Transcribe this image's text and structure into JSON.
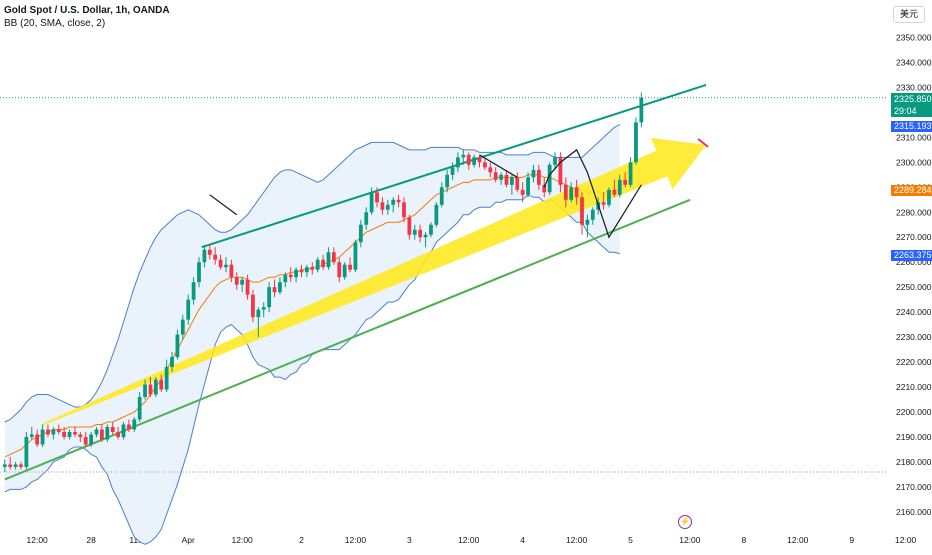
{
  "header": {
    "title": "Gold Spot / U.S. Dollar, 1h, OANDA",
    "indicator": "BB (20, SMA, close, 2)"
  },
  "currency_button": "美元",
  "price_tags": {
    "last_price": "2325.850",
    "countdown": "29:04",
    "bb_upper": "2315.193",
    "bb_basis": "2289.284",
    "bb_lower": "2263.375"
  },
  "colors": {
    "up": "#089981",
    "down": "#f23645",
    "bb_band": "#4a7fd1",
    "bb_basis": "#f57c00",
    "bb_fill": "#eaf3fb",
    "upper_channel": "#089981",
    "lower_channel": "#4caf50",
    "arrow": "#ffe81e",
    "pen": "#131722"
  },
  "chart_data": {
    "type": "candlestick",
    "title": "Gold Spot / U.S. Dollar, 1h, OANDA",
    "ylim": [
      2156,
      2356
    ],
    "y_ticks": [
      2160,
      2170,
      2180,
      2190,
      2200,
      2210,
      2220,
      2230,
      2240,
      2250,
      2260,
      2270,
      2280,
      2290,
      2300,
      2310,
      2320,
      2330,
      2340,
      2350
    ],
    "x_ticks": [
      "12:00",
      "28",
      "11:00",
      "Apr",
      "12:00",
      "2",
      "12:00",
      "3",
      "12:00",
      "4",
      "12:00",
      "5",
      "12:00",
      "8",
      "12:00",
      "9",
      "12:00"
    ],
    "x_index_range": [
      0,
      131
    ],
    "x_tick_positions": [
      6,
      16,
      25,
      34,
      44,
      55,
      65,
      75,
      86,
      96,
      106,
      116,
      127,
      137,
      147,
      157,
      167
    ],
    "candles": [
      {
        "o": 2178,
        "h": 2181,
        "l": 2176,
        "c": 2179
      },
      {
        "o": 2179,
        "h": 2182,
        "l": 2177,
        "c": 2178
      },
      {
        "o": 2178,
        "h": 2180,
        "l": 2177,
        "c": 2179
      },
      {
        "o": 2179,
        "h": 2180,
        "l": 2177,
        "c": 2178
      },
      {
        "o": 2178,
        "h": 2192,
        "l": 2177,
        "c": 2190
      },
      {
        "o": 2190,
        "h": 2194,
        "l": 2189,
        "c": 2191
      },
      {
        "o": 2191,
        "h": 2193,
        "l": 2186,
        "c": 2187
      },
      {
        "o": 2187,
        "h": 2195,
        "l": 2186,
        "c": 2193
      },
      {
        "o": 2193,
        "h": 2195,
        "l": 2190,
        "c": 2191
      },
      {
        "o": 2191,
        "h": 2194,
        "l": 2189,
        "c": 2193
      },
      {
        "o": 2193,
        "h": 2195,
        "l": 2191,
        "c": 2192
      },
      {
        "o": 2192,
        "h": 2194,
        "l": 2189,
        "c": 2190
      },
      {
        "o": 2190,
        "h": 2193,
        "l": 2189,
        "c": 2192
      },
      {
        "o": 2192,
        "h": 2194,
        "l": 2190,
        "c": 2191
      },
      {
        "o": 2191,
        "h": 2192,
        "l": 2188,
        "c": 2190
      },
      {
        "o": 2190,
        "h": 2192,
        "l": 2186,
        "c": 2187
      },
      {
        "o": 2187,
        "h": 2192,
        "l": 2186,
        "c": 2191
      },
      {
        "o": 2191,
        "h": 2194,
        "l": 2190,
        "c": 2193
      },
      {
        "o": 2193,
        "h": 2195,
        "l": 2188,
        "c": 2189
      },
      {
        "o": 2189,
        "h": 2195,
        "l": 2188,
        "c": 2194
      },
      {
        "o": 2194,
        "h": 2196,
        "l": 2191,
        "c": 2192
      },
      {
        "o": 2192,
        "h": 2194,
        "l": 2189,
        "c": 2190
      },
      {
        "o": 2190,
        "h": 2196,
        "l": 2189,
        "c": 2195
      },
      {
        "o": 2195,
        "h": 2197,
        "l": 2192,
        "c": 2193
      },
      {
        "o": 2193,
        "h": 2198,
        "l": 2192,
        "c": 2197
      },
      {
        "o": 2197,
        "h": 2208,
        "l": 2196,
        "c": 2206
      },
      {
        "o": 2206,
        "h": 2213,
        "l": 2205,
        "c": 2211
      },
      {
        "o": 2211,
        "h": 2214,
        "l": 2206,
        "c": 2207
      },
      {
        "o": 2207,
        "h": 2214,
        "l": 2206,
        "c": 2213
      },
      {
        "o": 2213,
        "h": 2215,
        "l": 2208,
        "c": 2209
      },
      {
        "o": 2209,
        "h": 2221,
        "l": 2208,
        "c": 2218
      },
      {
        "o": 2218,
        "h": 2224,
        "l": 2216,
        "c": 2222
      },
      {
        "o": 2222,
        "h": 2233,
        "l": 2221,
        "c": 2231
      },
      {
        "o": 2231,
        "h": 2239,
        "l": 2229,
        "c": 2237
      },
      {
        "o": 2237,
        "h": 2247,
        "l": 2235,
        "c": 2245
      },
      {
        "o": 2245,
        "h": 2254,
        "l": 2243,
        "c": 2252
      },
      {
        "o": 2252,
        "h": 2262,
        "l": 2250,
        "c": 2260
      },
      {
        "o": 2260,
        "h": 2267,
        "l": 2258,
        "c": 2265
      },
      {
        "o": 2265,
        "h": 2267,
        "l": 2261,
        "c": 2263
      },
      {
        "o": 2263,
        "h": 2266,
        "l": 2259,
        "c": 2261
      },
      {
        "o": 2261,
        "h": 2263,
        "l": 2257,
        "c": 2258
      },
      {
        "o": 2258,
        "h": 2262,
        "l": 2256,
        "c": 2259
      },
      {
        "o": 2259,
        "h": 2261,
        "l": 2252,
        "c": 2254
      },
      {
        "o": 2254,
        "h": 2256,
        "l": 2249,
        "c": 2251
      },
      {
        "o": 2251,
        "h": 2254,
        "l": 2248,
        "c": 2253
      },
      {
        "o": 2253,
        "h": 2255,
        "l": 2245,
        "c": 2247
      },
      {
        "o": 2247,
        "h": 2249,
        "l": 2236,
        "c": 2238
      },
      {
        "o": 2238,
        "h": 2242,
        "l": 2230,
        "c": 2241
      },
      {
        "o": 2241,
        "h": 2244,
        "l": 2238,
        "c": 2242
      },
      {
        "o": 2242,
        "h": 2252,
        "l": 2240,
        "c": 2250
      },
      {
        "o": 2250,
        "h": 2253,
        "l": 2246,
        "c": 2248
      },
      {
        "o": 2248,
        "h": 2254,
        "l": 2247,
        "c": 2252
      },
      {
        "o": 2252,
        "h": 2256,
        "l": 2250,
        "c": 2255
      },
      {
        "o": 2255,
        "h": 2258,
        "l": 2252,
        "c": 2254
      },
      {
        "o": 2254,
        "h": 2258,
        "l": 2252,
        "c": 2257
      },
      {
        "o": 2257,
        "h": 2259,
        "l": 2254,
        "c": 2256
      },
      {
        "o": 2256,
        "h": 2259,
        "l": 2254,
        "c": 2258
      },
      {
        "o": 2258,
        "h": 2260,
        "l": 2255,
        "c": 2257
      },
      {
        "o": 2257,
        "h": 2262,
        "l": 2256,
        "c": 2261
      },
      {
        "o": 2261,
        "h": 2263,
        "l": 2257,
        "c": 2258
      },
      {
        "o": 2258,
        "h": 2266,
        "l": 2257,
        "c": 2264
      },
      {
        "o": 2264,
        "h": 2266,
        "l": 2259,
        "c": 2260
      },
      {
        "o": 2260,
        "h": 2262,
        "l": 2252,
        "c": 2254
      },
      {
        "o": 2254,
        "h": 2260,
        "l": 2253,
        "c": 2259
      },
      {
        "o": 2259,
        "h": 2262,
        "l": 2256,
        "c": 2257
      },
      {
        "o": 2257,
        "h": 2269,
        "l": 2256,
        "c": 2268
      },
      {
        "o": 2268,
        "h": 2277,
        "l": 2266,
        "c": 2275
      },
      {
        "o": 2275,
        "h": 2282,
        "l": 2273,
        "c": 2280
      },
      {
        "o": 2280,
        "h": 2290,
        "l": 2279,
        "c": 2288
      },
      {
        "o": 2288,
        "h": 2290,
        "l": 2282,
        "c": 2284
      },
      {
        "o": 2284,
        "h": 2286,
        "l": 2279,
        "c": 2281
      },
      {
        "o": 2281,
        "h": 2285,
        "l": 2279,
        "c": 2283
      },
      {
        "o": 2283,
        "h": 2286,
        "l": 2280,
        "c": 2285
      },
      {
        "o": 2285,
        "h": 2287,
        "l": 2282,
        "c": 2284
      },
      {
        "o": 2284,
        "h": 2286,
        "l": 2276,
        "c": 2278
      },
      {
        "o": 2278,
        "h": 2279,
        "l": 2269,
        "c": 2271
      },
      {
        "o": 2271,
        "h": 2275,
        "l": 2269,
        "c": 2273
      },
      {
        "o": 2273,
        "h": 2275,
        "l": 2268,
        "c": 2270
      },
      {
        "o": 2270,
        "h": 2272,
        "l": 2266,
        "c": 2271
      },
      {
        "o": 2271,
        "h": 2276,
        "l": 2270,
        "c": 2275
      },
      {
        "o": 2275,
        "h": 2284,
        "l": 2274,
        "c": 2283
      },
      {
        "o": 2283,
        "h": 2292,
        "l": 2282,
        "c": 2290
      },
      {
        "o": 2290,
        "h": 2297,
        "l": 2288,
        "c": 2295
      },
      {
        "o": 2295,
        "h": 2300,
        "l": 2293,
        "c": 2298
      },
      {
        "o": 2298,
        "h": 2304,
        "l": 2296,
        "c": 2302
      },
      {
        "o": 2302,
        "h": 2305,
        "l": 2299,
        "c": 2303
      },
      {
        "o": 2303,
        "h": 2304,
        "l": 2297,
        "c": 2299
      },
      {
        "o": 2299,
        "h": 2303,
        "l": 2298,
        "c": 2302
      },
      {
        "o": 2302,
        "h": 2303,
        "l": 2298,
        "c": 2300
      },
      {
        "o": 2300,
        "h": 2302,
        "l": 2297,
        "c": 2298
      },
      {
        "o": 2298,
        "h": 2300,
        "l": 2294,
        "c": 2296
      },
      {
        "o": 2296,
        "h": 2298,
        "l": 2292,
        "c": 2293
      },
      {
        "o": 2293,
        "h": 2296,
        "l": 2291,
        "c": 2295
      },
      {
        "o": 2295,
        "h": 2297,
        "l": 2290,
        "c": 2291
      },
      {
        "o": 2291,
        "h": 2295,
        "l": 2287,
        "c": 2294
      },
      {
        "o": 2294,
        "h": 2296,
        "l": 2288,
        "c": 2289
      },
      {
        "o": 2289,
        "h": 2292,
        "l": 2284,
        "c": 2287
      },
      {
        "o": 2287,
        "h": 2296,
        "l": 2286,
        "c": 2294
      },
      {
        "o": 2294,
        "h": 2299,
        "l": 2292,
        "c": 2297
      },
      {
        "o": 2297,
        "h": 2299,
        "l": 2289,
        "c": 2291
      },
      {
        "o": 2291,
        "h": 2294,
        "l": 2286,
        "c": 2288
      },
      {
        "o": 2288,
        "h": 2300,
        "l": 2287,
        "c": 2299
      },
      {
        "o": 2299,
        "h": 2304,
        "l": 2297,
        "c": 2302
      },
      {
        "o": 2302,
        "h": 2304,
        "l": 2288,
        "c": 2291
      },
      {
        "o": 2291,
        "h": 2294,
        "l": 2282,
        "c": 2285
      },
      {
        "o": 2285,
        "h": 2292,
        "l": 2284,
        "c": 2290
      },
      {
        "o": 2290,
        "h": 2293,
        "l": 2283,
        "c": 2286
      },
      {
        "o": 2286,
        "h": 2288,
        "l": 2271,
        "c": 2275
      },
      {
        "o": 2275,
        "h": 2279,
        "l": 2270,
        "c": 2277
      },
      {
        "o": 2277,
        "h": 2282,
        "l": 2275,
        "c": 2281
      },
      {
        "o": 2281,
        "h": 2286,
        "l": 2279,
        "c": 2284
      },
      {
        "o": 2284,
        "h": 2288,
        "l": 2281,
        "c": 2283
      },
      {
        "o": 2283,
        "h": 2290,
        "l": 2282,
        "c": 2289
      },
      {
        "o": 2289,
        "h": 2293,
        "l": 2286,
        "c": 2287
      },
      {
        "o": 2287,
        "h": 2295,
        "l": 2286,
        "c": 2293
      },
      {
        "o": 2293,
        "h": 2296,
        "l": 2290,
        "c": 2291
      },
      {
        "o": 2291,
        "h": 2302,
        "l": 2290,
        "c": 2300
      },
      {
        "o": 2300,
        "h": 2318,
        "l": 2299,
        "c": 2316
      },
      {
        "o": 2316,
        "h": 2328,
        "l": 2314,
        "c": 2325.85
      }
    ],
    "bollinger": {
      "basis": [
        2182,
        2183,
        2184,
        2185,
        2187,
        2189,
        2190,
        2191,
        2192,
        2193,
        2193,
        2193,
        2194,
        2194,
        2194,
        2194,
        2194,
        2195,
        2195,
        2196,
        2196,
        2197,
        2198,
        2199,
        2200,
        2202,
        2204,
        2207,
        2210,
        2213,
        2217,
        2221,
        2225,
        2229,
        2233,
        2237,
        2241,
        2244,
        2247,
        2250,
        2252,
        2253,
        2254,
        2254,
        2254,
        2253,
        2252,
        2252,
        2253,
        2254,
        2254,
        2255,
        2255,
        2256,
        2256,
        2257,
        2257,
        2258,
        2258,
        2259,
        2260,
        2261,
        2262,
        2264,
        2266,
        2268,
        2270,
        2272,
        2273,
        2274,
        2275,
        2276,
        2276,
        2276,
        2277,
        2278,
        2279,
        2281,
        2283,
        2285,
        2287,
        2288,
        2289,
        2290,
        2291,
        2292,
        2292,
        2293,
        2293,
        2293,
        2293,
        2294,
        2294,
        2294,
        2294,
        2294,
        2294,
        2295,
        2295,
        2295,
        2294,
        2294,
        2293,
        2292,
        2291,
        2290,
        2289,
        2289,
        2288,
        2288,
        2288,
        2288,
        2288,
        2289,
        2289
      ],
      "upper": [
        2196,
        2197,
        2199,
        2201,
        2204,
        2206,
        2207,
        2207,
        2207,
        2206,
        2205,
        2204,
        2203,
        2202,
        2202,
        2203,
        2205,
        2208,
        2212,
        2217,
        2223,
        2229,
        2236,
        2243,
        2250,
        2256,
        2261,
        2266,
        2270,
        2273,
        2275,
        2277,
        2279,
        2280,
        2281,
        2280,
        2279,
        2277,
        2275,
        2273,
        2272,
        2272,
        2273,
        2275,
        2277,
        2279,
        2282,
        2285,
        2288,
        2291,
        2294,
        2296,
        2297,
        2297,
        2296,
        2295,
        2294,
        2293,
        2292,
        2293,
        2295,
        2297,
        2299,
        2301,
        2303,
        2305,
        2306,
        2307,
        2308,
        2308,
        2308,
        2308,
        2308,
        2307,
        2306,
        2305,
        2305,
        2305,
        2305,
        2306,
        2306,
        2306,
        2306,
        2306,
        2306,
        2305,
        2305,
        2305,
        2304,
        2304,
        2304,
        2304,
        2304,
        2303,
        2303,
        2303,
        2303,
        2303,
        2304,
        2304,
        2304,
        2303,
        2302,
        2302,
        2302,
        2302,
        2302,
        2302,
        2304,
        2306,
        2308,
        2310,
        2312,
        2314,
        2315.193
      ],
      "lower": [
        2168,
        2169,
        2169,
        2169,
        2170,
        2172,
        2173,
        2175,
        2177,
        2180,
        2181,
        2182,
        2185,
        2186,
        2186,
        2185,
        2183,
        2182,
        2178,
        2175,
        2169,
        2165,
        2160,
        2155,
        2150,
        2148,
        2147,
        2148,
        2150,
        2153,
        2159,
        2165,
        2171,
        2178,
        2185,
        2194,
        2203,
        2211,
        2219,
        2227,
        2232,
        2234,
        2235,
        2233,
        2231,
        2227,
        2222,
        2219,
        2218,
        2217,
        2214,
        2214,
        2213,
        2215,
        2216,
        2219,
        2220,
        2223,
        2224,
        2225,
        2225,
        2225,
        2225,
        2227,
        2229,
        2231,
        2234,
        2237,
        2238,
        2240,
        2242,
        2244,
        2244,
        2245,
        2248,
        2251,
        2253,
        2257,
        2261,
        2264,
        2268,
        2270,
        2272,
        2274,
        2276,
        2279,
        2279,
        2281,
        2282,
        2282,
        2282,
        2284,
        2284,
        2285,
        2285,
        2285,
        2285,
        2287,
        2286,
        2286,
        2284,
        2285,
        2284,
        2282,
        2280,
        2278,
        2276,
        2276,
        2272,
        2270,
        2268,
        2266,
        2264,
        2264,
        2263.375
      ]
    },
    "annotations": {
      "upper_channel": {
        "start": [
          36.5,
          2266
        ],
        "end": [
          130,
          2331
        ]
      },
      "lower_channel": {
        "start": [
          0,
          2173
        ],
        "end": [
          127,
          2285
        ]
      },
      "trend_arrow": {
        "start": [
          7,
          2195
        ],
        "end": [
          130,
          2307
        ]
      },
      "zigzag_1": [
        [
          38,
          2287
        ],
        [
          43,
          2279
        ]
      ],
      "zigzag_2": [
        [
          88,
          2303
        ],
        [
          95,
          2294
        ]
      ],
      "zigzag_3": [
        [
          100,
          2290
        ],
        [
          101,
          2295
        ],
        [
          103,
          2300
        ],
        [
          106,
          2305
        ],
        [
          108,
          2296
        ],
        [
          110,
          2283
        ],
        [
          112,
          2270
        ],
        [
          118,
          2291
        ]
      ],
      "last_price_line": 2325.85,
      "reference_line": 2176
    }
  }
}
